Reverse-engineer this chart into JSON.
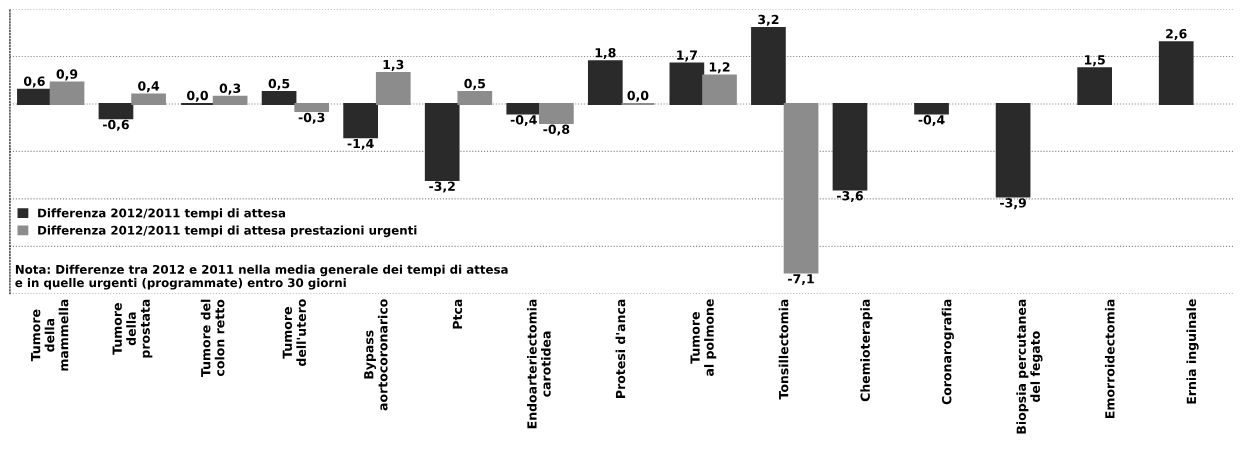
{
  "chart_data": {
    "type": "bar",
    "categories": [
      "Tumore\ndella\nmammella",
      "Tumore\ndella\nprostata",
      "Tumore del\ncolon retto",
      "Tumore\ndell'utero",
      "Bypass\naortocoronarico",
      "Ptca",
      "Endoarteriectomia\ncarotidea",
      "Protesi d'anca",
      "Tumore\nal polmone",
      "Tonsillectomia",
      "Chemioterapia",
      "Coronarografia",
      "Biopsia percutanea\ndel fegato",
      "Emorroidectomia",
      "Ernia inguinale"
    ],
    "series": [
      {
        "name": "Differenza 2012/2011 tempi di attesa",
        "color": "#2a2a2a",
        "values": [
          0.6,
          -0.6,
          0.0,
          0.5,
          -1.4,
          -3.2,
          -0.4,
          1.8,
          1.7,
          3.2,
          -3.6,
          -0.4,
          -3.9,
          1.5,
          2.6
        ],
        "value_labels": [
          "0,6",
          "-0,6",
          "0,0",
          "0,5",
          "-1,4",
          "-3,2",
          "-0,4",
          "1,8",
          "1,7",
          "3,2",
          "-3,6",
          "-0,4",
          "-3,9",
          "1,5",
          "2,6"
        ]
      },
      {
        "name": "Differenza 2012/2011 tempi di attesa prestazioni urgenti",
        "color": "#8c8c8c",
        "values": [
          0.9,
          0.4,
          0.3,
          -0.3,
          1.3,
          0.5,
          -0.8,
          0.0,
          1.2,
          -7.1,
          null,
          null,
          null,
          null,
          null
        ],
        "value_labels": [
          "0,9",
          "0,4",
          "0,3",
          "-0,3",
          "1,3",
          "0,5",
          "-0,8",
          "0,0",
          "1,2",
          "-7,1",
          null,
          null,
          null,
          null,
          null
        ]
      }
    ],
    "ylim": [
      -8,
      4
    ],
    "yticks": [
      {
        "value": -8,
        "label": null
      },
      {
        "value": -6,
        "label": null
      },
      {
        "value": -4,
        "label": null
      },
      {
        "value": -2,
        "label": null
      },
      {
        "value": 0,
        "label": null
      },
      {
        "value": 2,
        "label": null
      },
      {
        "value": 4,
        "label": null
      }
    ],
    "tick_labels": "x",
    "grid": "y",
    "legend": "bottom left",
    "annotations": [
      "Nota: Differenze tra 2012 e 2011 nella media generale dei tempi di attesa\ne in quelle urgenti (programmate) entro 30 giorni"
    ]
  }
}
